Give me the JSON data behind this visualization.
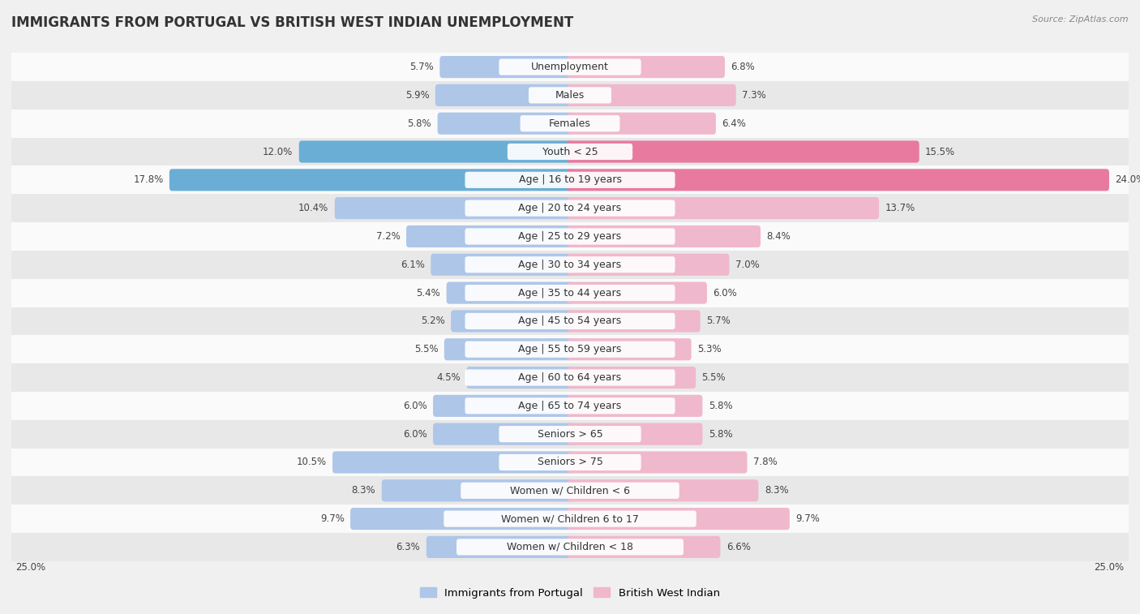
{
  "title": "IMMIGRANTS FROM PORTUGAL VS BRITISH WEST INDIAN UNEMPLOYMENT",
  "source": "Source: ZipAtlas.com",
  "categories": [
    "Unemployment",
    "Males",
    "Females",
    "Youth < 25",
    "Age | 16 to 19 years",
    "Age | 20 to 24 years",
    "Age | 25 to 29 years",
    "Age | 30 to 34 years",
    "Age | 35 to 44 years",
    "Age | 45 to 54 years",
    "Age | 55 to 59 years",
    "Age | 60 to 64 years",
    "Age | 65 to 74 years",
    "Seniors > 65",
    "Seniors > 75",
    "Women w/ Children < 6",
    "Women w/ Children 6 to 17",
    "Women w/ Children < 18"
  ],
  "portugal_values": [
    5.7,
    5.9,
    5.8,
    12.0,
    17.8,
    10.4,
    7.2,
    6.1,
    5.4,
    5.2,
    5.5,
    4.5,
    6.0,
    6.0,
    10.5,
    8.3,
    9.7,
    6.3
  ],
  "bwi_values": [
    6.8,
    7.3,
    6.4,
    15.5,
    24.0,
    13.7,
    8.4,
    7.0,
    6.0,
    5.7,
    5.3,
    5.5,
    5.8,
    5.8,
    7.8,
    8.3,
    9.7,
    6.6
  ],
  "portugal_color_light": "#aec6e8",
  "portugal_color_dark": "#6aaed6",
  "bwi_color_light": "#f0b8cc",
  "bwi_color_dark": "#e87aa0",
  "background_color": "#f0f0f0",
  "row_white": "#fafafa",
  "row_gray": "#e8e8e8",
  "xlim": 25.0,
  "bar_height": 0.52,
  "title_fontsize": 12,
  "label_fontsize": 9,
  "value_fontsize": 8.5,
  "legend_fontsize": 9.5,
  "highlight_threshold_portugal": 12.0,
  "highlight_threshold_bwi": 15.5
}
